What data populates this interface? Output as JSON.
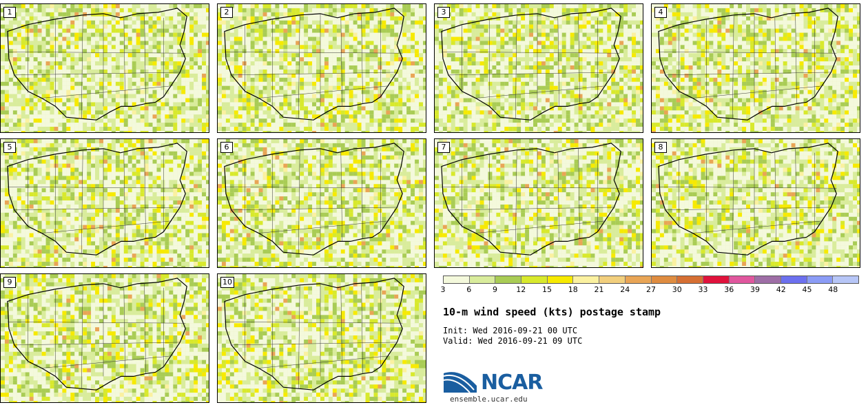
{
  "title": "10-m wind speed (kts) postage stamp",
  "init_line": "Init: Wed 2016-09-21 00 UTC",
  "valid_line": "Valid: Wed 2016-09-21 09 UTC",
  "panels": [
    {
      "label": "1"
    },
    {
      "label": "2"
    },
    {
      "label": "3"
    },
    {
      "label": "4"
    },
    {
      "label": "5"
    },
    {
      "label": "6"
    },
    {
      "label": "7"
    },
    {
      "label": "8"
    },
    {
      "label": "9"
    },
    {
      "label": "10"
    }
  ],
  "colorbar": {
    "colors": [
      "#f4f9dc",
      "#d9ec9c",
      "#a9cc55",
      "#d8e92c",
      "#f7ea00",
      "#fbf1a0",
      "#f2cf7d",
      "#e9a556",
      "#df8c40",
      "#d66f33",
      "#e0123c",
      "#e0579e",
      "#9e6ea6",
      "#6c70ef",
      "#8b9cf6",
      "#b7c6f7"
    ],
    "tick_labels": [
      "3",
      "6",
      "9",
      "12",
      "15",
      "18",
      "21",
      "24",
      "27",
      "30",
      "33",
      "36",
      "39",
      "42",
      "45",
      "48"
    ]
  },
  "logo": {
    "text": "NCAR",
    "url": "ensemble.ucar.edu"
  }
}
